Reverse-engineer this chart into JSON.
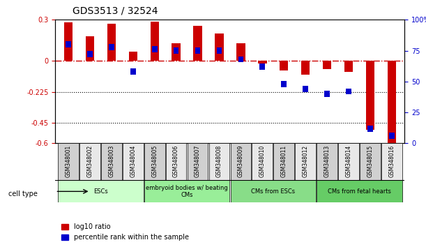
{
  "title": "GDS3513 / 32524",
  "samples": [
    "GSM348001",
    "GSM348002",
    "GSM348003",
    "GSM348004",
    "GSM348005",
    "GSM348006",
    "GSM348007",
    "GSM348008",
    "GSM348009",
    "GSM348010",
    "GSM348011",
    "GSM348012",
    "GSM348013",
    "GSM348014",
    "GSM348015",
    "GSM348016"
  ],
  "log10_ratio": [
    0.28,
    0.18,
    0.27,
    0.07,
    0.285,
    0.13,
    0.255,
    0.2,
    0.13,
    -0.02,
    -0.07,
    -0.1,
    -0.06,
    -0.08,
    -0.5,
    -0.6
  ],
  "percentile_rank": [
    80,
    72,
    78,
    58,
    76,
    75,
    75,
    75,
    68,
    62,
    48,
    44,
    40,
    42,
    12,
    6
  ],
  "ylim_left": [
    -0.6,
    0.3
  ],
  "ylim_right": [
    0,
    100
  ],
  "yticks_left": [
    -0.6,
    -0.45,
    -0.225,
    0,
    0.3
  ],
  "ytick_labels_left": [
    "-0.6",
    "-0.45",
    "-0.225",
    "0",
    "0.3"
  ],
  "yticks_right": [
    0,
    25,
    50,
    75,
    100
  ],
  "ytick_labels_right": [
    "0",
    "25",
    "50",
    "75",
    "100%"
  ],
  "hline_y": 0,
  "dotted_lines": [
    -0.225,
    -0.45
  ],
  "bar_color_red": "#cc0000",
  "bar_color_blue": "#0000cc",
  "cell_type_groups": [
    {
      "label": "ESCs",
      "start": 0,
      "end": 3,
      "color": "#ccffcc"
    },
    {
      "label": "embryoid bodies w/ beating\nCMs",
      "start": 4,
      "end": 7,
      "color": "#99ee99"
    },
    {
      "label": "CMs from ESCs",
      "start": 8,
      "end": 11,
      "color": "#88dd88"
    },
    {
      "label": "CMs from fetal hearts",
      "start": 12,
      "end": 15,
      "color": "#66cc66"
    }
  ],
  "legend_red_label": "log10 ratio",
  "legend_blue_label": "percentile rank within the sample",
  "bar_width": 0.4,
  "blue_bar_width": 0.25
}
